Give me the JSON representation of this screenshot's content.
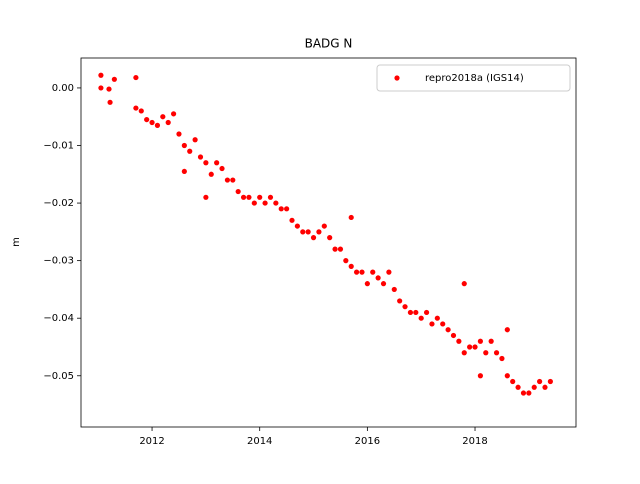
{
  "chart_data": {
    "type": "scatter",
    "title": "BADG N",
    "ylabel": "m",
    "xlim": [
      2010.68,
      2019.876
    ],
    "ylim": [
      -0.0589,
      0.0052
    ],
    "xticks": [
      2012,
      2014,
      2016,
      2018
    ],
    "yticks": [
      {
        "value": 0.0,
        "label": "0.00"
      },
      {
        "value": -0.01,
        "label": "−0.01"
      },
      {
        "value": -0.02,
        "label": "−0.02"
      },
      {
        "value": -0.03,
        "label": "−0.03"
      },
      {
        "value": -0.04,
        "label": "−0.04"
      },
      {
        "value": -0.05,
        "label": "−0.05"
      }
    ],
    "legend": "upper right",
    "series": [
      {
        "name": "repro2018a (IGS14)",
        "color": "#ff0000",
        "x": [
          2011.05,
          2011.05,
          2011.2,
          2011.22,
          2011.3,
          2011.7,
          2011.7,
          2011.8,
          2011.9,
          2012.0,
          2012.1,
          2012.2,
          2012.3,
          2012.4,
          2012.5,
          2012.6,
          2012.7,
          2012.8,
          2012.9,
          2013.0,
          2013.1,
          2013.2,
          2013.3,
          2013.4,
          2013.5,
          2013.6,
          2013.7,
          2013.8,
          2013.9,
          2014.0,
          2014.1,
          2014.2,
          2014.3,
          2014.4,
          2014.5,
          2014.6,
          2014.7,
          2014.8,
          2014.9,
          2015.0,
          2015.1,
          2015.2,
          2015.3,
          2015.4,
          2015.5,
          2015.6,
          2015.7,
          2015.8,
          2015.9,
          2016.0,
          2016.1,
          2016.2,
          2016.3,
          2016.4,
          2016.5,
          2016.6,
          2016.7,
          2016.8,
          2016.9,
          2017.0,
          2017.1,
          2017.2,
          2017.3,
          2017.4,
          2017.5,
          2017.6,
          2017.7,
          2017.8,
          2017.9,
          2018.0,
          2018.1,
          2018.2,
          2018.3,
          2018.4,
          2018.5,
          2018.6,
          2018.7,
          2018.8,
          2018.9,
          2019.0,
          2019.1,
          2019.2,
          2019.3,
          2019.4,
          2012.6,
          2013.0,
          2015.7,
          2017.8,
          2018.6,
          2018.1
        ],
        "values": [
          0.0022,
          0.0,
          -0.0002,
          -0.0025,
          0.0015,
          0.0018,
          -0.0035,
          -0.004,
          -0.0055,
          -0.006,
          -0.0065,
          -0.005,
          -0.006,
          -0.0045,
          -0.008,
          -0.01,
          -0.011,
          -0.009,
          -0.012,
          -0.013,
          -0.015,
          -0.013,
          -0.014,
          -0.016,
          -0.016,
          -0.018,
          -0.019,
          -0.019,
          -0.02,
          -0.019,
          -0.02,
          -0.019,
          -0.02,
          -0.021,
          -0.021,
          -0.023,
          -0.024,
          -0.025,
          -0.025,
          -0.026,
          -0.025,
          -0.024,
          -0.026,
          -0.028,
          -0.028,
          -0.03,
          -0.031,
          -0.032,
          -0.032,
          -0.034,
          -0.032,
          -0.033,
          -0.034,
          -0.032,
          -0.035,
          -0.037,
          -0.038,
          -0.039,
          -0.039,
          -0.04,
          -0.039,
          -0.041,
          -0.04,
          -0.041,
          -0.042,
          -0.043,
          -0.044,
          -0.046,
          -0.045,
          -0.045,
          -0.044,
          -0.046,
          -0.044,
          -0.046,
          -0.047,
          -0.05,
          -0.051,
          -0.052,
          -0.053,
          -0.053,
          -0.052,
          -0.051,
          -0.052,
          -0.051,
          -0.0145,
          -0.019,
          -0.0225,
          -0.034,
          -0.042,
          -0.05
        ]
      }
    ]
  }
}
